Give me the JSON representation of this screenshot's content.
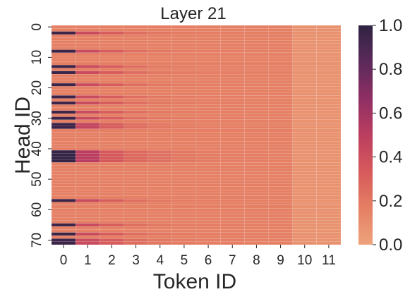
{
  "chart_data": {
    "type": "heatmap",
    "title": "Layer 21",
    "xlabel": "Token ID",
    "ylabel": "Head ID",
    "x_categories": [
      0,
      1,
      2,
      3,
      4,
      5,
      6,
      7,
      8,
      9,
      10,
      11
    ],
    "y_range": [
      0,
      71
    ],
    "y_tick_labels": [
      "0",
      "10",
      "20",
      "30",
      "40",
      "50",
      "60",
      "70"
    ],
    "y_tick_values": [
      0,
      10,
      20,
      30,
      40,
      50,
      60,
      70
    ],
    "colorbar": {
      "range": [
        0.0,
        1.0
      ],
      "tick_labels": [
        "0.0",
        "0.2",
        "0.4",
        "0.6",
        "0.8",
        "1.0"
      ],
      "tick_values": [
        0.0,
        0.2,
        0.4,
        0.6,
        0.8,
        1.0
      ],
      "colormap": "flare",
      "colors": [
        "#eda37c",
        "#e57f64",
        "#d65a5b",
        "#bb3e60",
        "#8f2f64",
        "#5b2a5a",
        "#2f2342"
      ]
    },
    "base_row": [
      0.16,
      0.16,
      0.16,
      0.16,
      0.16,
      0.16,
      0.16,
      0.16,
      0.16,
      0.16,
      0.08,
      0.08
    ],
    "highlight_rows": [
      {
        "head": 2,
        "values": [
          0.95,
          0.42,
          0.32,
          0.24,
          0.2,
          0.18,
          0.17,
          0.17,
          0.16,
          0.16,
          0.08,
          0.08
        ]
      },
      {
        "head": 8,
        "values": [
          0.95,
          0.42,
          0.32,
          0.24,
          0.2,
          0.18,
          0.17,
          0.17,
          0.16,
          0.16,
          0.08,
          0.08
        ]
      },
      {
        "head": 13,
        "values": [
          0.95,
          0.42,
          0.32,
          0.24,
          0.2,
          0.18,
          0.17,
          0.17,
          0.16,
          0.16,
          0.08,
          0.08
        ]
      },
      {
        "head": 15,
        "values": [
          0.95,
          0.42,
          0.32,
          0.24,
          0.2,
          0.18,
          0.17,
          0.17,
          0.16,
          0.16,
          0.08,
          0.08
        ]
      },
      {
        "head": 19,
        "values": [
          0.95,
          0.42,
          0.32,
          0.24,
          0.2,
          0.18,
          0.17,
          0.17,
          0.16,
          0.16,
          0.08,
          0.08
        ]
      },
      {
        "head": 23,
        "values": [
          0.95,
          0.42,
          0.32,
          0.24,
          0.2,
          0.18,
          0.17,
          0.17,
          0.16,
          0.16,
          0.08,
          0.08
        ]
      },
      {
        "head": 25,
        "values": [
          0.95,
          0.42,
          0.32,
          0.24,
          0.2,
          0.18,
          0.17,
          0.17,
          0.16,
          0.16,
          0.08,
          0.08
        ]
      },
      {
        "head": 28,
        "values": [
          0.95,
          0.42,
          0.32,
          0.24,
          0.2,
          0.18,
          0.17,
          0.17,
          0.16,
          0.16,
          0.08,
          0.08
        ]
      },
      {
        "head": 30,
        "values": [
          0.95,
          0.42,
          0.32,
          0.24,
          0.2,
          0.18,
          0.17,
          0.17,
          0.16,
          0.16,
          0.08,
          0.08
        ]
      },
      {
        "head": 32,
        "values": [
          0.95,
          0.45,
          0.32,
          0.24,
          0.2,
          0.18,
          0.17,
          0.17,
          0.16,
          0.16,
          0.08,
          0.08
        ]
      },
      {
        "head": 33,
        "values": [
          0.95,
          0.45,
          0.32,
          0.24,
          0.2,
          0.18,
          0.17,
          0.17,
          0.16,
          0.16,
          0.08,
          0.08
        ]
      },
      {
        "head": 41,
        "values": [
          0.98,
          0.5,
          0.34,
          0.27,
          0.23,
          0.2,
          0.18,
          0.17,
          0.17,
          0.16,
          0.08,
          0.08
        ]
      },
      {
        "head": 42,
        "values": [
          0.98,
          0.5,
          0.34,
          0.27,
          0.23,
          0.2,
          0.18,
          0.17,
          0.17,
          0.16,
          0.08,
          0.08
        ]
      },
      {
        "head": 43,
        "values": [
          0.98,
          0.5,
          0.34,
          0.27,
          0.23,
          0.2,
          0.18,
          0.17,
          0.17,
          0.16,
          0.08,
          0.08
        ]
      },
      {
        "head": 44,
        "values": [
          0.98,
          0.5,
          0.34,
          0.27,
          0.23,
          0.2,
          0.18,
          0.17,
          0.17,
          0.16,
          0.08,
          0.08
        ]
      },
      {
        "head": 57,
        "values": [
          0.95,
          0.42,
          0.32,
          0.24,
          0.2,
          0.18,
          0.17,
          0.17,
          0.16,
          0.16,
          0.08,
          0.08
        ]
      },
      {
        "head": 65,
        "values": [
          0.95,
          0.42,
          0.32,
          0.24,
          0.2,
          0.18,
          0.17,
          0.17,
          0.16,
          0.16,
          0.08,
          0.08
        ]
      },
      {
        "head": 68,
        "values": [
          0.95,
          0.42,
          0.32,
          0.24,
          0.2,
          0.18,
          0.17,
          0.17,
          0.16,
          0.16,
          0.08,
          0.08
        ]
      },
      {
        "head": 70,
        "values": [
          0.95,
          0.42,
          0.32,
          0.24,
          0.2,
          0.18,
          0.17,
          0.17,
          0.16,
          0.16,
          0.08,
          0.08
        ]
      },
      {
        "head": 71,
        "values": [
          0.95,
          0.42,
          0.32,
          0.24,
          0.2,
          0.18,
          0.17,
          0.17,
          0.16,
          0.16,
          0.08,
          0.08
        ]
      }
    ],
    "grid": false,
    "legend": "colorbar-right"
  }
}
